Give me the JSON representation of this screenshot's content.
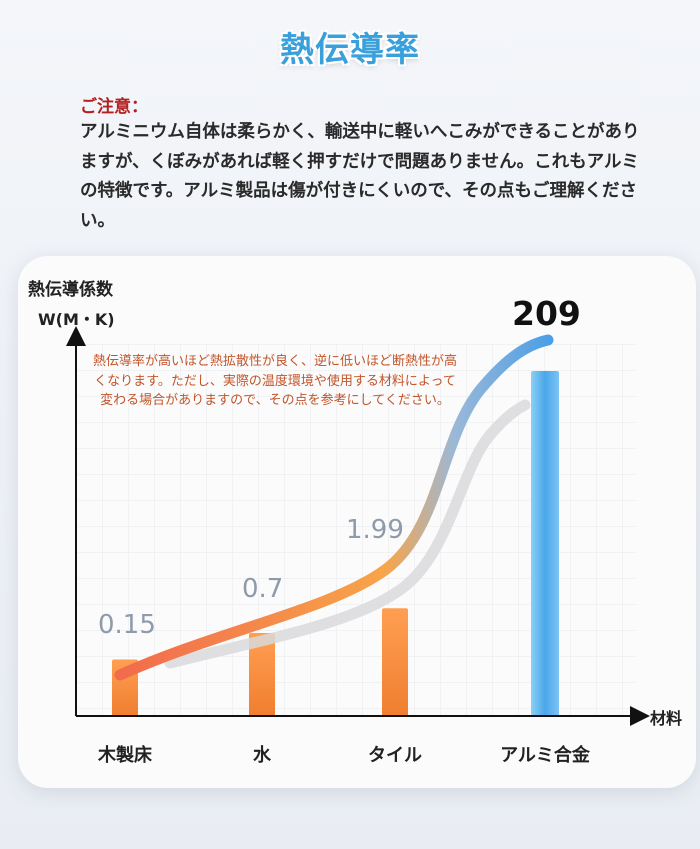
{
  "header": {
    "title": "熱伝導率"
  },
  "notice": {
    "heading": "ご注意：",
    "body": "アルミニウム自体は柔らかく、輸送中に軽いへこみができることがありますが、くぼみがあれば軽く押すだけで問題ありません。これもアルミの特徴です。アルミ製品は傷が付きにくいので、その点もご理解ください。"
  },
  "chart_data": {
    "type": "bar",
    "ylabel": "熱伝導係数",
    "yunit": "W(M・K)",
    "xlabel": "材料",
    "categories": [
      "木製床",
      "水",
      "タイル",
      "アルミ合金"
    ],
    "values": [
      0.15,
      0.7,
      1.99,
      209
    ],
    "value_labels": [
      "0.15",
      "0.7",
      "1.99",
      "209"
    ],
    "annotation": "熱伝導率が高いほど熱拡散性が良く、逆に低いほど断熱性が高くなります。ただし、実際の温度環境や使用する材料によって変わる場合がありますので、その点を参考にしてください。",
    "scale": "non-linear",
    "grid": true,
    "colors": {
      "orange_bar": "#f7913f",
      "blue_bar": "#5ab0ea",
      "curve_start": "#f26b4c",
      "curve_end": "#4a9fe6",
      "title": "#3aa0db",
      "notice_heading": "#b32020",
      "annotation": "#c2552a"
    }
  }
}
